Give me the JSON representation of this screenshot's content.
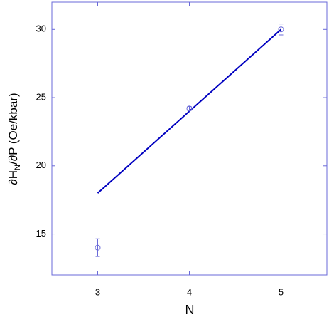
{
  "chart_data": {
    "type": "scatter",
    "x_label": "N",
    "y_label_parts": [
      "∂H",
      "N",
      "/∂P (Oe/kbar)"
    ],
    "xlim": [
      2.5,
      5.5
    ],
    "xticks": [
      3,
      4,
      5
    ],
    "ylim": [
      12,
      32
    ],
    "yticks": [
      15,
      20,
      25,
      30
    ],
    "points": {
      "x": [
        3,
        4,
        5
      ],
      "y": [
        14,
        24.2,
        30
      ],
      "errors": [
        0.65,
        0.15,
        0.4
      ],
      "color": "#6a6ad8"
    },
    "fit": {
      "x": [
        3,
        5
      ],
      "y": [
        18,
        30
      ],
      "color": "#0000c0"
    },
    "frame_color": "#6a6ad8"
  }
}
